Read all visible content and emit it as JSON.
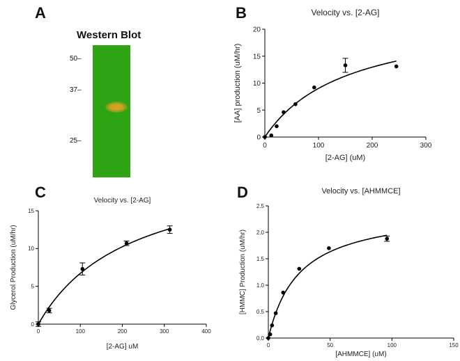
{
  "panels": {
    "a": {
      "letter": "A",
      "title": "Western Blot",
      "markers": [
        "50",
        "37",
        "25"
      ],
      "blot_color": "#2ea414",
      "band_color": "#d8a020"
    },
    "b": {
      "letter": "B"
    },
    "c": {
      "letter": "C"
    },
    "d": {
      "letter": "D"
    }
  },
  "chart_data": [
    {
      "panel": "B",
      "type": "scatter",
      "title": "Velocity vs. [2-AG]",
      "xlabel": "[2-AG] (uM)",
      "ylabel": "[AA] production (uM/hr)",
      "xlim": [
        0,
        300
      ],
      "ylim": [
        0,
        20
      ],
      "xticks": [
        0,
        100,
        200,
        300
      ],
      "yticks": [
        0,
        5,
        10,
        15,
        20
      ],
      "grid": false,
      "points": [
        {
          "x": 0,
          "y": 0
        },
        {
          "x": 12,
          "y": 0.3
        },
        {
          "x": 22,
          "y": 2.0
        },
        {
          "x": 35,
          "y": 4.6
        },
        {
          "x": 57,
          "y": 6.1
        },
        {
          "x": 92,
          "y": 9.2
        },
        {
          "x": 150,
          "y": 13.3,
          "err": 1.3
        },
        {
          "x": 245,
          "y": 13.1
        }
      ],
      "fit": {
        "model": "michaelis-menten",
        "vmax": 23,
        "km": 155
      }
    },
    {
      "panel": "C",
      "type": "scatter",
      "title": "Velocity vs. [2-AG]",
      "xlabel": "[2-AG] uM",
      "ylabel": "Glycerol Production (uM/hr)",
      "xlim": [
        0,
        400
      ],
      "ylim": [
        0,
        15
      ],
      "xticks": [
        0,
        100,
        200,
        300,
        400
      ],
      "yticks": [
        0,
        5,
        10,
        15
      ],
      "grid": false,
      "points": [
        {
          "x": 0,
          "y": 0,
          "err": 0.3
        },
        {
          "x": 26,
          "y": 1.8,
          "err": 0.3
        },
        {
          "x": 105,
          "y": 7.3,
          "err": 0.8
        },
        {
          "x": 210,
          "y": 10.7,
          "err": 0.3
        },
        {
          "x": 313,
          "y": 12.5,
          "err": 0.5
        }
      ],
      "fit": {
        "model": "michaelis-menten",
        "vmax": 21.5,
        "km": 220
      }
    },
    {
      "panel": "D",
      "type": "scatter",
      "title": "Velocity vs. [AHMMCE]",
      "xlabel": "[AHMMCE] (uM)",
      "ylabel": "[HMMC] Production (uM/hr)",
      "xlim": [
        0,
        150
      ],
      "ylim": [
        0,
        2.5
      ],
      "xticks": [
        0,
        50,
        100,
        150
      ],
      "yticks": [
        0.0,
        0.5,
        1.0,
        1.5,
        2.0,
        2.5
      ],
      "ytick_labels": [
        "0.0",
        "0.5",
        "1.0",
        "1.5",
        "2.0",
        "2.5"
      ],
      "grid": false,
      "points": [
        {
          "x": 0,
          "y": 0
        },
        {
          "x": 1.5,
          "y": 0.07
        },
        {
          "x": 3,
          "y": 0.24
        },
        {
          "x": 6,
          "y": 0.47
        },
        {
          "x": 12,
          "y": 0.86
        },
        {
          "x": 25,
          "y": 1.31
        },
        {
          "x": 49,
          "y": 1.7
        },
        {
          "x": 96,
          "y": 1.88,
          "err": 0.05
        }
      ],
      "fit": {
        "model": "michaelis-menten",
        "vmax": 2.45,
        "km": 25
      }
    }
  ]
}
